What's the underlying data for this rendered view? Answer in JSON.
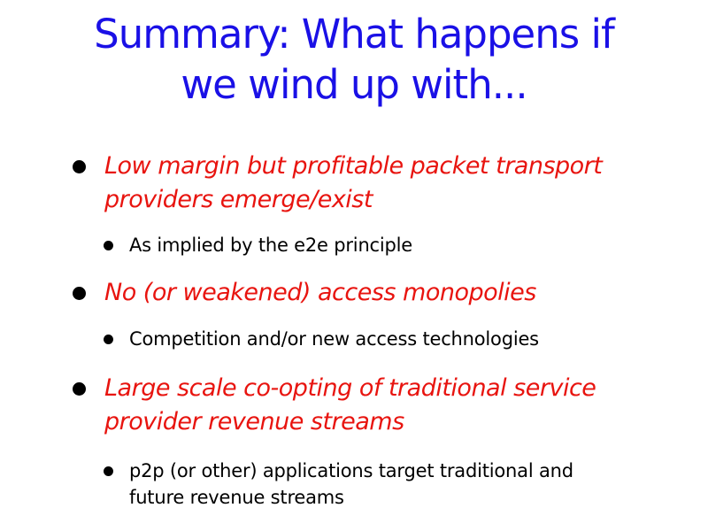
{
  "slide": {
    "title_lines": [
      "Summary: What happens if",
      "we wind up with..."
    ],
    "items": [
      {
        "level": 1,
        "lines": [
          "Low margin but profitable packet transport",
          "providers emerge/exist"
        ]
      },
      {
        "level": 2,
        "lines": [
          "As implied by the e2e principle"
        ]
      },
      {
        "level": 1,
        "lines": [
          "No (or weakened) access monopolies"
        ]
      },
      {
        "level": 2,
        "lines": [
          "Competition and/or new access technologies"
        ]
      },
      {
        "level": 1,
        "lines": [
          "Large scale co-opting of traditional service",
          "provider revenue streams"
        ]
      },
      {
        "level": 2,
        "lines": [
          "p2p (or other) applications target traditional and",
          "future revenue streams"
        ]
      }
    ],
    "colors": {
      "title": "#1a10e6",
      "level1_text": "#e8140f",
      "level2_text": "#000000",
      "background": "#ffffff"
    }
  }
}
